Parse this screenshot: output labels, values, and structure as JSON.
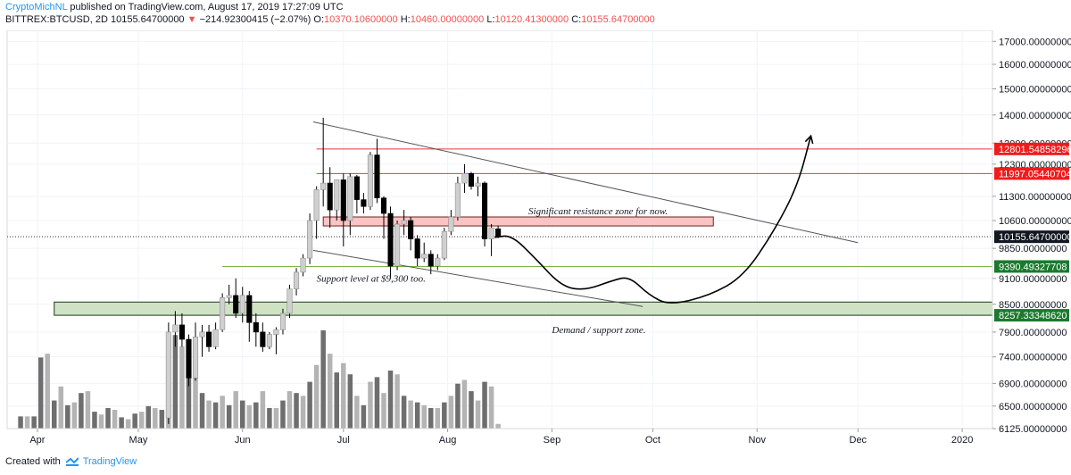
{
  "header": {
    "author": "CryptoMichNL",
    "published": "published on TradingView.com, August 17, 2019 17:27:09 UTC",
    "symbol": "BITTREX:BTCUSD, 2D",
    "last": "10155.64700000",
    "change": "−214.92300415 (−2.07%)",
    "o_label": "O:",
    "o_value": "10370.10600000",
    "h_label": "H:",
    "h_value": "10460.00000000",
    "l_label": "L:",
    "l_value": "10120.41300000",
    "c_label": "C:",
    "c_value": "10155.64700000"
  },
  "footer": {
    "created": "Created with",
    "brand": "TradingView"
  },
  "colors": {
    "up": "#cfcfcf",
    "down": "#000000",
    "vol_up": "#b4b4b4",
    "vol_down": "#6e6e6e",
    "resistance_line": "#e53935",
    "support_line": "#7cb342",
    "resistance_zone": "#f8c4c4",
    "demand_zone": "#cfe3c4",
    "label_red": "#ef1c1c",
    "label_green": "#1b7a2e",
    "label_dark": "#131722"
  },
  "chart_data": {
    "type": "candlestick",
    "y_scale": "log",
    "ylim": [
      6125,
      17500
    ],
    "y_ticks": [
      {
        "v": 17000,
        "label": "17000.00000000"
      },
      {
        "v": 16000,
        "label": "16000.00000000"
      },
      {
        "v": 15000,
        "label": "15000.00000000"
      },
      {
        "v": 14000,
        "label": "14000.00000000"
      },
      {
        "v": 13000,
        "label": "13000.00000000"
      },
      {
        "v": 12300,
        "label": "12300.00000000"
      },
      {
        "v": 11300,
        "label": "11300.00000000"
      },
      {
        "v": 10600,
        "label": "10600.00000000"
      },
      {
        "v": 9850,
        "label": "9850.00000000"
      },
      {
        "v": 9100,
        "label": "9100.00000000"
      },
      {
        "v": 8500,
        "label": "8500.00000000"
      },
      {
        "v": 7900,
        "label": "7900.00000000"
      },
      {
        "v": 7400,
        "label": "7400.00000000"
      },
      {
        "v": 6900,
        "label": "6900.00000000"
      },
      {
        "v": 6500,
        "label": "6500.00000000"
      },
      {
        "v": 6125,
        "label": "6125.00000000"
      }
    ],
    "x_ticks": [
      {
        "date": "2019-04-01",
        "label": "Apr"
      },
      {
        "date": "2019-05-01",
        "label": "May"
      },
      {
        "date": "2019-06-01",
        "label": "Jun"
      },
      {
        "date": "2019-07-01",
        "label": "Jul"
      },
      {
        "date": "2019-08-01",
        "label": "Aug"
      },
      {
        "date": "2019-09-01",
        "label": "Sep"
      },
      {
        "date": "2019-10-01",
        "label": "Oct"
      },
      {
        "date": "2019-11-01",
        "label": "Nov"
      },
      {
        "date": "2019-12-01",
        "label": "Dec"
      },
      {
        "date": "2020-01-01",
        "label": "2020"
      }
    ],
    "xlim": [
      "2019-03-23",
      "2020-01-10"
    ],
    "grid": true,
    "candles": [
      {
        "d": "2019-05-10",
        "o": 6300,
        "h": 8100,
        "l": 6200,
        "c": 7900
      },
      {
        "d": "2019-05-12",
        "o": 7900,
        "h": 8350,
        "l": 7600,
        "c": 8050
      },
      {
        "d": "2019-05-14",
        "o": 8050,
        "h": 8300,
        "l": 7600,
        "c": 7750
      },
      {
        "d": "2019-05-16",
        "o": 7750,
        "h": 7850,
        "l": 6850,
        "c": 7000
      },
      {
        "d": "2019-05-18",
        "o": 7000,
        "h": 8100,
        "l": 6950,
        "c": 7800
      },
      {
        "d": "2019-05-20",
        "o": 7800,
        "h": 8050,
        "l": 7400,
        "c": 7900
      },
      {
        "d": "2019-05-22",
        "o": 7900,
        "h": 8050,
        "l": 7500,
        "c": 7600
      },
      {
        "d": "2019-05-24",
        "o": 7600,
        "h": 8100,
        "l": 7550,
        "c": 7950
      },
      {
        "d": "2019-05-26",
        "o": 7950,
        "h": 8750,
        "l": 7900,
        "c": 8650
      },
      {
        "d": "2019-05-28",
        "o": 8650,
        "h": 8950,
        "l": 8500,
        "c": 8700
      },
      {
        "d": "2019-05-30",
        "o": 8700,
        "h": 9100,
        "l": 8200,
        "c": 8300
      },
      {
        "d": "2019-06-01",
        "o": 8300,
        "h": 8900,
        "l": 8100,
        "c": 8700
      },
      {
        "d": "2019-06-03",
        "o": 8700,
        "h": 8800,
        "l": 7700,
        "c": 8100
      },
      {
        "d": "2019-06-05",
        "o": 8100,
        "h": 8300,
        "l": 7600,
        "c": 7900
      },
      {
        "d": "2019-06-07",
        "o": 7900,
        "h": 8100,
        "l": 7500,
        "c": 7600
      },
      {
        "d": "2019-06-09",
        "o": 7600,
        "h": 7900,
        "l": 7550,
        "c": 7850
      },
      {
        "d": "2019-06-11",
        "o": 7850,
        "h": 8000,
        "l": 7450,
        "c": 7950
      },
      {
        "d": "2019-06-13",
        "o": 7950,
        "h": 8400,
        "l": 7850,
        "c": 8300
      },
      {
        "d": "2019-06-15",
        "o": 8300,
        "h": 8950,
        "l": 8200,
        "c": 8850
      },
      {
        "d": "2019-06-17",
        "o": 8850,
        "h": 9350,
        "l": 8700,
        "c": 9250
      },
      {
        "d": "2019-06-19",
        "o": 9250,
        "h": 9700,
        "l": 9150,
        "c": 9600
      },
      {
        "d": "2019-06-21",
        "o": 9600,
        "h": 10800,
        "l": 9450,
        "c": 10600
      },
      {
        "d": "2019-06-23",
        "o": 10600,
        "h": 11600,
        "l": 10100,
        "c": 11500
      },
      {
        "d": "2019-06-25",
        "o": 11500,
        "h": 13900,
        "l": 11000,
        "c": 11700
      },
      {
        "d": "2019-06-27",
        "o": 11700,
        "h": 12200,
        "l": 10400,
        "c": 10900
      },
      {
        "d": "2019-06-29",
        "o": 10900,
        "h": 11800,
        "l": 10600,
        "c": 11800
      },
      {
        "d": "2019-07-01",
        "o": 11800,
        "h": 12000,
        "l": 9900,
        "c": 10600
      },
      {
        "d": "2019-07-03",
        "o": 10600,
        "h": 12000,
        "l": 10200,
        "c": 11900
      },
      {
        "d": "2019-07-05",
        "o": 11900,
        "h": 11950,
        "l": 10800,
        "c": 11200
      },
      {
        "d": "2019-07-07",
        "o": 11200,
        "h": 11400,
        "l": 10800,
        "c": 11000
      },
      {
        "d": "2019-07-09",
        "o": 11000,
        "h": 12700,
        "l": 10900,
        "c": 12600
      },
      {
        "d": "2019-07-11",
        "o": 12600,
        "h": 13150,
        "l": 11100,
        "c": 11250
      },
      {
        "d": "2019-07-13",
        "o": 11250,
        "h": 11300,
        "l": 10100,
        "c": 10800
      },
      {
        "d": "2019-07-15",
        "o": 10800,
        "h": 11000,
        "l": 9100,
        "c": 9400
      },
      {
        "d": "2019-07-17",
        "o": 9400,
        "h": 10600,
        "l": 9300,
        "c": 10500
      },
      {
        "d": "2019-07-19",
        "o": 10500,
        "h": 10900,
        "l": 10200,
        "c": 10600
      },
      {
        "d": "2019-07-21",
        "o": 10600,
        "h": 10700,
        "l": 9800,
        "c": 10100
      },
      {
        "d": "2019-07-23",
        "o": 10100,
        "h": 10200,
        "l": 9400,
        "c": 9600
      },
      {
        "d": "2019-07-25",
        "o": 9600,
        "h": 10000,
        "l": 9500,
        "c": 9700
      },
      {
        "d": "2019-07-27",
        "o": 9700,
        "h": 9800,
        "l": 9200,
        "c": 9400
      },
      {
        "d": "2019-07-29",
        "o": 9400,
        "h": 9700,
        "l": 9300,
        "c": 9600
      },
      {
        "d": "2019-07-31",
        "o": 9600,
        "h": 10400,
        "l": 9550,
        "c": 10300
      },
      {
        "d": "2019-08-02",
        "o": 10300,
        "h": 10900,
        "l": 10200,
        "c": 10700
      },
      {
        "d": "2019-08-04",
        "o": 10700,
        "h": 11900,
        "l": 10600,
        "c": 11700
      },
      {
        "d": "2019-08-06",
        "o": 11700,
        "h": 12300,
        "l": 11400,
        "c": 12000
      },
      {
        "d": "2019-08-08",
        "o": 12000,
        "h": 12050,
        "l": 11500,
        "c": 11600
      },
      {
        "d": "2019-08-10",
        "o": 11600,
        "h": 11900,
        "l": 11300,
        "c": 11700
      },
      {
        "d": "2019-08-12",
        "o": 11700,
        "h": 11750,
        "l": 9900,
        "c": 10100
      },
      {
        "d": "2019-08-14",
        "o": 10100,
        "h": 10500,
        "l": 9650,
        "c": 10400
      },
      {
        "d": "2019-08-16",
        "o": 10370,
        "h": 10460,
        "l": 10120,
        "c": 10156
      }
    ],
    "volume": [
      {
        "d": "2019-03-27",
        "v": 13,
        "up": false
      },
      {
        "d": "2019-03-29",
        "v": 13,
        "up": true
      },
      {
        "d": "2019-03-31",
        "v": 13,
        "up": false
      },
      {
        "d": "2019-04-02",
        "v": 76,
        "up": false
      },
      {
        "d": "2019-04-04",
        "v": 80,
        "up": true
      },
      {
        "d": "2019-04-06",
        "v": 30,
        "up": false
      },
      {
        "d": "2019-04-08",
        "v": 45,
        "up": true
      },
      {
        "d": "2019-04-10",
        "v": 25,
        "up": false
      },
      {
        "d": "2019-04-12",
        "v": 28,
        "up": true
      },
      {
        "d": "2019-04-14",
        "v": 38,
        "up": false
      },
      {
        "d": "2019-04-16",
        "v": 40,
        "up": true
      },
      {
        "d": "2019-04-18",
        "v": 18,
        "up": false
      },
      {
        "d": "2019-04-20",
        "v": 15,
        "up": true
      },
      {
        "d": "2019-04-22",
        "v": 22,
        "up": false
      },
      {
        "d": "2019-04-24",
        "v": 20,
        "up": true
      },
      {
        "d": "2019-04-26",
        "v": 12,
        "up": false
      },
      {
        "d": "2019-04-28",
        "v": 10,
        "up": true
      },
      {
        "d": "2019-04-30",
        "v": 16,
        "up": false
      },
      {
        "d": "2019-05-02",
        "v": 18,
        "up": true
      },
      {
        "d": "2019-05-04",
        "v": 24,
        "up": false
      },
      {
        "d": "2019-05-06",
        "v": 22,
        "up": true
      },
      {
        "d": "2019-05-08",
        "v": 20,
        "up": false
      },
      {
        "d": "2019-05-10",
        "v": 95,
        "up": true
      },
      {
        "d": "2019-05-12",
        "v": 100,
        "up": false
      },
      {
        "d": "2019-05-14",
        "v": 88,
        "up": true
      },
      {
        "d": "2019-05-16",
        "v": 60,
        "up": false
      },
      {
        "d": "2019-05-18",
        "v": 55,
        "up": true
      },
      {
        "d": "2019-05-20",
        "v": 38,
        "up": false
      },
      {
        "d": "2019-05-22",
        "v": 30,
        "up": true
      },
      {
        "d": "2019-05-24",
        "v": 28,
        "up": false
      },
      {
        "d": "2019-05-26",
        "v": 35,
        "up": true
      },
      {
        "d": "2019-05-28",
        "v": 25,
        "up": false
      },
      {
        "d": "2019-05-30",
        "v": 40,
        "up": true
      },
      {
        "d": "2019-06-01",
        "v": 30,
        "up": false
      },
      {
        "d": "2019-06-03",
        "v": 25,
        "up": true
      },
      {
        "d": "2019-06-05",
        "v": 28,
        "up": false
      },
      {
        "d": "2019-06-07",
        "v": 40,
        "up": true
      },
      {
        "d": "2019-06-09",
        "v": 22,
        "up": false
      },
      {
        "d": "2019-06-11",
        "v": 22,
        "up": true
      },
      {
        "d": "2019-06-13",
        "v": 30,
        "up": false
      },
      {
        "d": "2019-06-15",
        "v": 40,
        "up": true
      },
      {
        "d": "2019-06-17",
        "v": 38,
        "up": false
      },
      {
        "d": "2019-06-19",
        "v": 35,
        "up": true
      },
      {
        "d": "2019-06-21",
        "v": 50,
        "up": false
      },
      {
        "d": "2019-06-23",
        "v": 68,
        "up": true
      },
      {
        "d": "2019-06-25",
        "v": 105,
        "up": false
      },
      {
        "d": "2019-06-27",
        "v": 80,
        "up": true
      },
      {
        "d": "2019-06-29",
        "v": 60,
        "up": false
      },
      {
        "d": "2019-07-01",
        "v": 70,
        "up": true
      },
      {
        "d": "2019-07-03",
        "v": 58,
        "up": false
      },
      {
        "d": "2019-07-05",
        "v": 35,
        "up": true
      },
      {
        "d": "2019-07-07",
        "v": 25,
        "up": false
      },
      {
        "d": "2019-07-09",
        "v": 50,
        "up": true
      },
      {
        "d": "2019-07-11",
        "v": 55,
        "up": false
      },
      {
        "d": "2019-07-13",
        "v": 38,
        "up": true
      },
      {
        "d": "2019-07-15",
        "v": 62,
        "up": false
      },
      {
        "d": "2019-07-17",
        "v": 58,
        "up": true
      },
      {
        "d": "2019-07-19",
        "v": 35,
        "up": false
      },
      {
        "d": "2019-07-21",
        "v": 30,
        "up": true
      },
      {
        "d": "2019-07-23",
        "v": 28,
        "up": false
      },
      {
        "d": "2019-07-25",
        "v": 25,
        "up": true
      },
      {
        "d": "2019-07-27",
        "v": 22,
        "up": false
      },
      {
        "d": "2019-07-29",
        "v": 22,
        "up": true
      },
      {
        "d": "2019-07-31",
        "v": 28,
        "up": false
      },
      {
        "d": "2019-08-02",
        "v": 35,
        "up": true
      },
      {
        "d": "2019-08-04",
        "v": 48,
        "up": false
      },
      {
        "d": "2019-08-06",
        "v": 52,
        "up": true
      },
      {
        "d": "2019-08-08",
        "v": 40,
        "up": false
      },
      {
        "d": "2019-08-10",
        "v": 30,
        "up": true
      },
      {
        "d": "2019-08-12",
        "v": 50,
        "up": false
      },
      {
        "d": "2019-08-14",
        "v": 45,
        "up": true
      },
      {
        "d": "2019-08-16",
        "v": 5,
        "up": true
      }
    ],
    "horizontal_lines": [
      {
        "name": "resistance-line-12801",
        "price": 12801.54858296,
        "label": "12801.54858296",
        "color": "#e53935",
        "from": "2019-06-23"
      },
      {
        "name": "resistance-line-11997",
        "price": 11997.05440704,
        "label": "11997.05440704",
        "color": "#e53935",
        "from": "2019-06-23"
      },
      {
        "name": "support-line-9390",
        "price": 9390.49327708,
        "label": "9390.49327708",
        "color": "#7cb342",
        "from": "2019-05-26"
      }
    ],
    "current_price": {
      "price": 10155.647,
      "label": "10155.64700000"
    },
    "zones": [
      {
        "name": "resistance-zone",
        "from": "2019-06-25",
        "to": "2019-10-19",
        "low": 10450,
        "high": 10700,
        "fill": "#f8c4c4",
        "stroke": "#7a1f1f"
      },
      {
        "name": "demand-zone",
        "from": "2019-04-06",
        "to": "2020-01-31",
        "low": 8257.3334862,
        "high": 8550,
        "fill": "#cfe3c4",
        "stroke": "#1b3a1b",
        "label": "8257.33348620"
      }
    ],
    "trendlines": [
      {
        "name": "upper-channel-line",
        "from": [
          "2019-06-22",
          13750
        ],
        "to": [
          "2019-12-01",
          10000
        ]
      },
      {
        "name": "lower-channel-line",
        "from": [
          "2019-06-22",
          9800
        ],
        "to": [
          "2019-09-28",
          8450
        ]
      }
    ],
    "projection": [
      [
        "2019-08-15",
        10140
      ],
      [
        "2019-08-20",
        10200
      ],
      [
        "2019-08-27",
        9600
      ],
      [
        "2019-09-04",
        8900
      ],
      [
        "2019-09-11",
        8820
      ],
      [
        "2019-09-19",
        9050
      ],
      [
        "2019-09-24",
        9150
      ],
      [
        "2019-09-30",
        8700
      ],
      [
        "2019-10-06",
        8480
      ],
      [
        "2019-10-18",
        8700
      ],
      [
        "2019-10-28",
        9150
      ],
      [
        "2019-11-06",
        10300
      ],
      [
        "2019-11-13",
        11600
      ],
      [
        "2019-11-17",
        13250
      ]
    ],
    "annotations": [
      {
        "name": "resistance-zone-note",
        "text": "Significant resistance zone for now.",
        "date": "2019-08-25",
        "price": 10780
      },
      {
        "name": "support-level-note",
        "text": "Support level at $9,300 too.",
        "date": "2019-06-23",
        "price": 9020
      },
      {
        "name": "demand-zone-note",
        "text": "Demand / support zone.",
        "date": "2019-09-01",
        "price": 7880
      }
    ]
  }
}
